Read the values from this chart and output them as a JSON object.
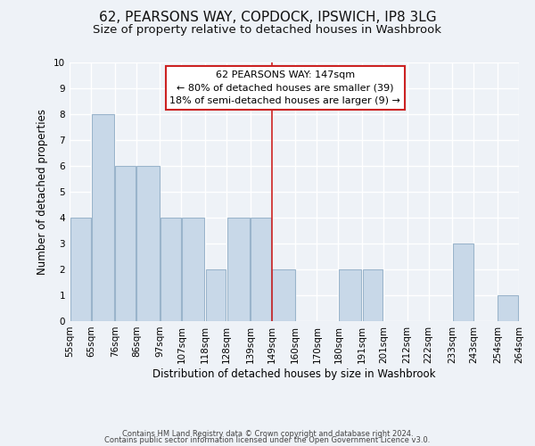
{
  "title": "62, PEARSONS WAY, COPDOCK, IPSWICH, IP8 3LG",
  "subtitle": "Size of property relative to detached houses in Washbrook",
  "xlabel": "Distribution of detached houses by size in Washbrook",
  "ylabel": "Number of detached properties",
  "xlabels": [
    "55sqm",
    "65sqm",
    "76sqm",
    "86sqm",
    "97sqm",
    "107sqm",
    "118sqm",
    "128sqm",
    "139sqm",
    "149sqm",
    "160sqm",
    "170sqm",
    "180sqm",
    "191sqm",
    "201sqm",
    "212sqm",
    "222sqm",
    "233sqm",
    "243sqm",
    "254sqm",
    "264sqm"
  ],
  "bar_edges": [
    55,
    65,
    76,
    86,
    97,
    107,
    118,
    128,
    139,
    149,
    160,
    170,
    180,
    191,
    201,
    212,
    222,
    233,
    243,
    254,
    264
  ],
  "bar_heights": [
    4,
    8,
    6,
    6,
    4,
    4,
    2,
    4,
    4,
    2,
    0,
    0,
    2,
    2,
    0,
    0,
    0,
    3,
    0,
    1,
    0
  ],
  "bar_color": "#c8d8e8",
  "bar_edgecolor": "#9ab4cb",
  "red_line_x": 149,
  "ylim": [
    0,
    10
  ],
  "yticks": [
    0,
    1,
    2,
    3,
    4,
    5,
    6,
    7,
    8,
    9,
    10
  ],
  "annotation_title": "62 PEARSONS WAY: 147sqm",
  "annotation_line1": "← 80% of detached houses are smaller (39)",
  "annotation_line2": "18% of semi-detached houses are larger (9) →",
  "footer1": "Contains HM Land Registry data © Crown copyright and database right 2024.",
  "footer2": "Contains public sector information licensed under the Open Government Licence v3.0.",
  "background_color": "#eef2f7",
  "grid_color": "#ffffff",
  "title_fontsize": 11,
  "subtitle_fontsize": 9.5,
  "xlabel_fontsize": 8.5,
  "ylabel_fontsize": 8.5,
  "tick_fontsize": 7.5,
  "footer_fontsize": 6
}
